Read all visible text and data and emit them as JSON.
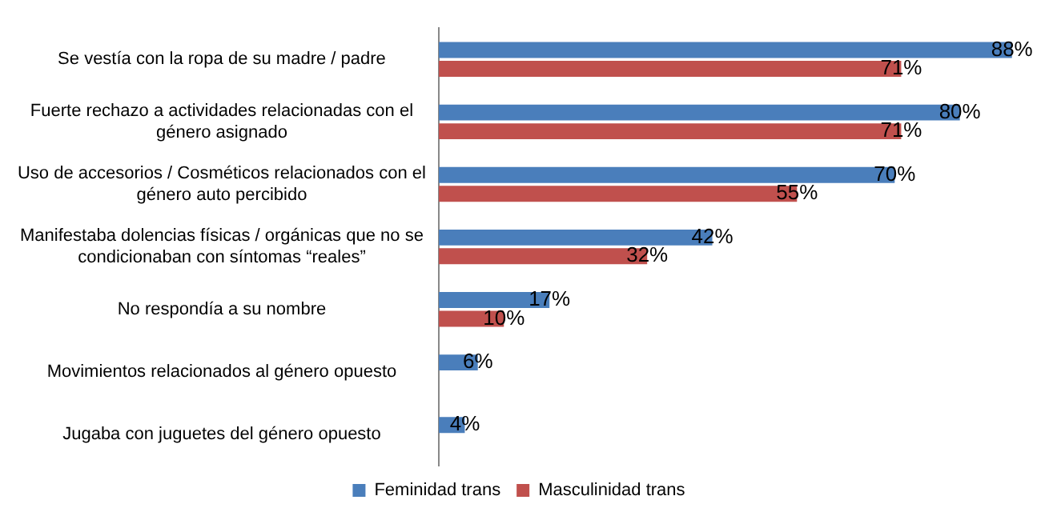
{
  "chart_data": {
    "type": "bar",
    "orientation": "horizontal",
    "categories": [
      "Se vestía con la ropa de su madre / padre",
      "Fuerte rechazo a actividades relacionadas con el género asignado",
      "Uso de accesorios / Cosméticos relacionados con el género auto percibido",
      "Manifestaba dolencias físicas / orgánicas que no se condicionaban con síntomas “reales”",
      "No respondía a su nombre",
      "Movimientos relacionados al género opuesto",
      "Jugaba con juguetes del género opuesto"
    ],
    "series": [
      {
        "name": "Feminidad trans",
        "color": "#4a7ebb",
        "values": [
          88,
          80,
          70,
          42,
          17,
          6,
          4
        ],
        "value_labels": [
          "88%",
          "80%",
          "70%",
          "42%",
          "17%",
          "6%",
          "4%"
        ]
      },
      {
        "name": "Masculinidad trans",
        "color": "#c0504d",
        "values": [
          71,
          71,
          55,
          32,
          10,
          null,
          null
        ],
        "value_labels": [
          "71%",
          "71%",
          "55%",
          "32%",
          "10%",
          null,
          null
        ]
      }
    ],
    "tick_labels": "y",
    "grid": false,
    "legend": "bottom"
  }
}
